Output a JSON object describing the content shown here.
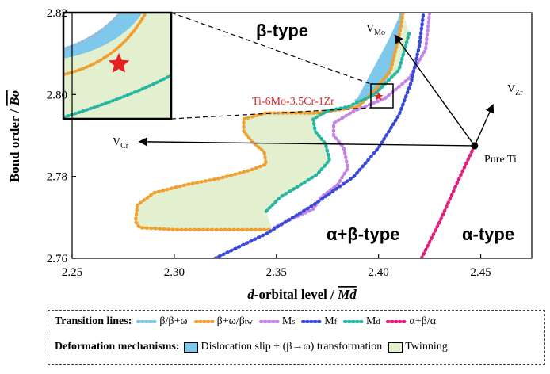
{
  "chart_data": {
    "type": "scatter",
    "xlabel_italic": "d",
    "xlabel_rest": "-orbital level / ",
    "xlabel_overbar": "Md",
    "ylabel_text": "Bond order / ",
    "ylabel_overbar": "Bo",
    "xlim": [
      2.25,
      2.475
    ],
    "ylim": [
      2.76,
      2.82
    ],
    "xticks": [
      "2.25",
      "2.30",
      "2.35",
      "2.40",
      "2.45"
    ],
    "yticks": [
      "2.76",
      "2.78",
      "2.80",
      "2.82"
    ],
    "region_labels": {
      "beta": "β-type",
      "alpha_beta": "α+β-type",
      "alpha": "α-type"
    },
    "alloy": {
      "label": "Ti-6Mo-3.5Cr-1Zr",
      "x": 2.4,
      "y": 2.7995
    },
    "pure_ti": {
      "label": "Pure Ti",
      "x": 2.447,
      "y": 2.7875
    },
    "vectors": [
      {
        "name_main": "V",
        "name_sub": "Mo",
        "to": [
          2.408,
          2.8145
        ]
      },
      {
        "name_main": "V",
        "name_sub": "Cr",
        "to": [
          2.283,
          2.7885
        ]
      },
      {
        "name_main": "V",
        "name_sub": "Zr",
        "to": [
          2.456,
          2.7975
        ]
      }
    ],
    "series": [
      {
        "key": "b_bw",
        "color": "#7ec3e6",
        "points": [
          [
            2.389,
            2.7985
          ],
          [
            2.396,
            2.8
          ],
          [
            2.401,
            2.802
          ],
          [
            2.405,
            2.805
          ],
          [
            2.407,
            2.81
          ],
          [
            2.409,
            2.815
          ],
          [
            2.411,
            2.82
          ]
        ]
      },
      {
        "key": "bw_btw",
        "color": "#f0a030",
        "points": [
          [
            2.412,
            2.82
          ],
          [
            2.41,
            2.814
          ],
          [
            2.406,
            2.806
          ],
          [
            2.399,
            2.8015
          ],
          [
            2.39,
            2.797
          ],
          [
            2.37,
            2.7955
          ],
          [
            2.345,
            2.7955
          ],
          [
            2.334,
            2.794
          ],
          [
            2.334,
            2.791
          ],
          [
            2.338,
            2.7885
          ],
          [
            2.344,
            2.786
          ],
          [
            2.345,
            2.783
          ],
          [
            2.337,
            2.7815
          ],
          [
            2.322,
            2.7795
          ],
          [
            2.306,
            2.778
          ],
          [
            2.29,
            2.776
          ],
          [
            2.282,
            2.773
          ],
          [
            2.281,
            2.769
          ],
          [
            2.283,
            2.7675
          ],
          [
            2.3,
            2.767
          ],
          [
            2.33,
            2.767
          ],
          [
            2.348,
            2.767
          ]
        ]
      },
      {
        "key": "ms",
        "color": "#c484e6",
        "points": [
          [
            2.425,
            2.82
          ],
          [
            2.423,
            2.811
          ],
          [
            2.415,
            2.804
          ],
          [
            2.403,
            2.799
          ],
          [
            2.388,
            2.796
          ],
          [
            2.378,
            2.793
          ],
          [
            2.378,
            2.79
          ],
          [
            2.383,
            2.787
          ],
          [
            2.385,
            2.782
          ],
          [
            2.38,
            2.778
          ],
          [
            2.372,
            2.775
          ],
          [
            2.368,
            2.772
          ],
          [
            2.357,
            2.7695
          ],
          [
            2.349,
            2.7675
          ]
        ]
      },
      {
        "key": "mf",
        "color": "#3a4ad8",
        "points": [
          [
            2.32,
            2.76
          ],
          [
            2.345,
            2.766
          ],
          [
            2.368,
            2.773
          ],
          [
            2.388,
            2.78
          ],
          [
            2.4,
            2.787
          ],
          [
            2.41,
            2.795
          ],
          [
            2.416,
            2.803
          ],
          [
            2.42,
            2.812
          ],
          [
            2.422,
            2.82
          ]
        ]
      },
      {
        "key": "md",
        "color": "#25b5a0",
        "points": [
          [
            2.415,
            2.815
          ],
          [
            2.41,
            2.806
          ],
          [
            2.398,
            2.8
          ],
          [
            2.385,
            2.797
          ],
          [
            2.375,
            2.796
          ],
          [
            2.368,
            2.794
          ],
          [
            2.369,
            2.791
          ],
          [
            2.374,
            2.788
          ],
          [
            2.376,
            2.784
          ],
          [
            2.37,
            2.7805
          ],
          [
            2.362,
            2.778
          ],
          [
            2.352,
            2.775
          ],
          [
            2.345,
            2.7715
          ]
        ]
      },
      {
        "key": "ab_a",
        "color": "#e0207a",
        "points": [
          [
            2.421,
            2.76
          ],
          [
            2.43,
            2.769
          ],
          [
            2.439,
            2.779
          ],
          [
            2.447,
            2.7875
          ]
        ]
      }
    ]
  },
  "legend": {
    "transition_title": "Transition lines:",
    "t1": "β/β+ω",
    "t2_main": "β+ω/β",
    "t2_sub": "tw",
    "t3_main": "M",
    "t3_sub": "s",
    "t4_main": "M",
    "t4_sub": "f",
    "t5_main": "M",
    "t5_sub": "d",
    "t6": "α+β/α",
    "deform_title": "Deformation mechanisms:",
    "d1": "Dislocation slip + (β→ω) transformation",
    "d2": "Twinning",
    "colors": {
      "dislocation": "#7ec8ec",
      "twinning": "#e3f0cf"
    }
  }
}
